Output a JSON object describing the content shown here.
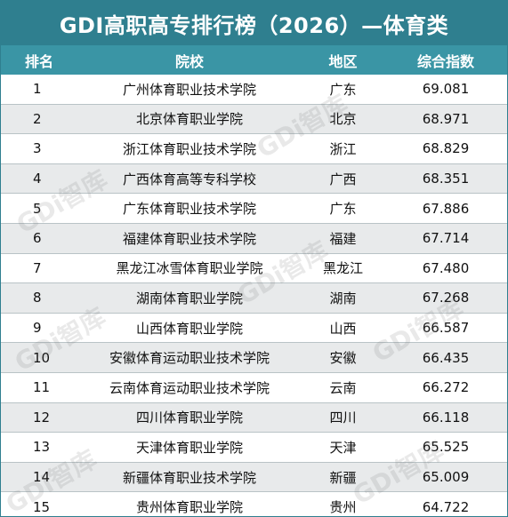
{
  "title": "GDI高职高专排行榜（2026）—体育类",
  "headers": {
    "rank": "排名",
    "school": "院校",
    "region": "地区",
    "score": "综合指数"
  },
  "watermark_text": "GDi智库",
  "rows": [
    {
      "rank": "1",
      "school": "广州体育职业技术学院",
      "region": "广东",
      "score": "69.081"
    },
    {
      "rank": "2",
      "school": "北京体育职业学院",
      "region": "北京",
      "score": "68.971"
    },
    {
      "rank": "3",
      "school": "浙江体育职业技术学院",
      "region": "浙江",
      "score": "68.829"
    },
    {
      "rank": "4",
      "school": "广西体育高等专科学校",
      "region": "广西",
      "score": "68.351"
    },
    {
      "rank": "5",
      "school": "广东体育职业技术学院",
      "region": "广东",
      "score": "67.886"
    },
    {
      "rank": "6",
      "school": "福建体育职业技术学院",
      "region": "福建",
      "score": "67.714"
    },
    {
      "rank": "7",
      "school": "黑龙江冰雪体育职业学院",
      "region": "黑龙江",
      "score": "67.480"
    },
    {
      "rank": "8",
      "school": "湖南体育职业学院",
      "region": "湖南",
      "score": "67.268"
    },
    {
      "rank": "9",
      "school": "山西体育职业学院",
      "region": "山西",
      "score": "66.587"
    },
    {
      "rank": "10",
      "school": "安徽体育运动职业技术学院",
      "region": "安徽",
      "score": "66.435"
    },
    {
      "rank": "11",
      "school": "云南体育运动职业技术学院",
      "region": "云南",
      "score": "66.272"
    },
    {
      "rank": "12",
      "school": "四川体育职业学院",
      "region": "四川",
      "score": "66.118"
    },
    {
      "rank": "13",
      "school": "天津体育职业学院",
      "region": "天津",
      "score": "65.525"
    },
    {
      "rank": "14",
      "school": "新疆体育职业技术学院",
      "region": "新疆",
      "score": "65.009"
    },
    {
      "rank": "15",
      "school": "贵州体育职业学院",
      "region": "贵州",
      "score": "64.722"
    }
  ]
}
